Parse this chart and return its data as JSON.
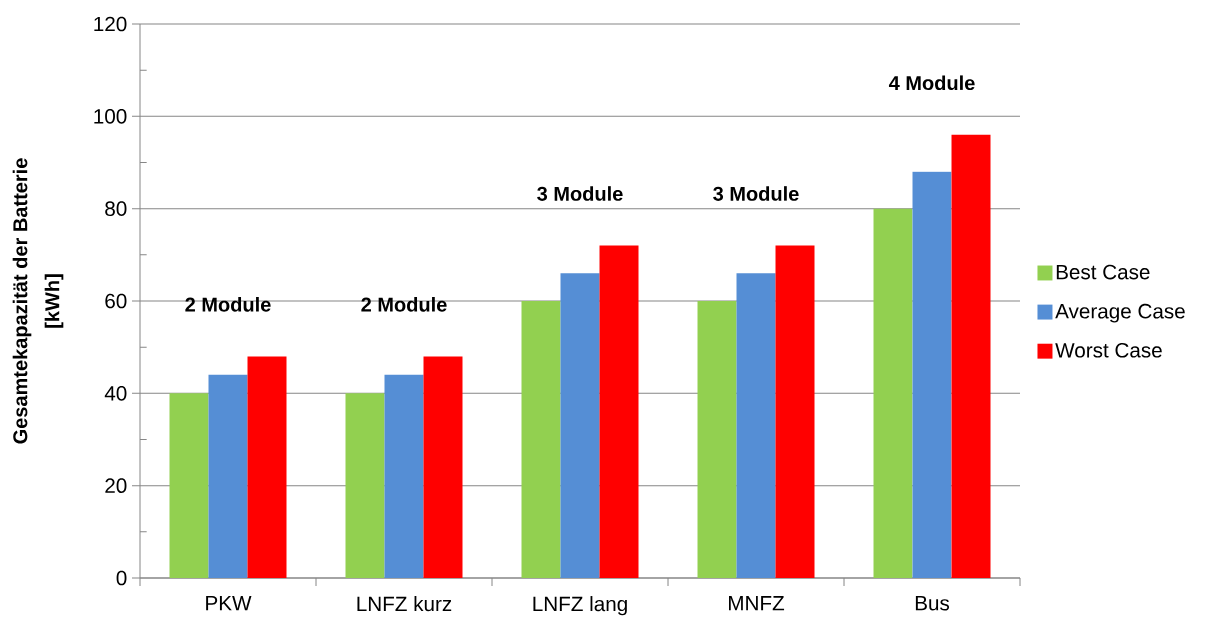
{
  "chart_data": {
    "type": "bar",
    "ylabel": "Gesamtekapazität der Batterie [kWh]",
    "categories": [
      "PKW",
      "LNFZ kurz",
      "LNFZ lang",
      "MNFZ",
      "Bus"
    ],
    "series": [
      {
        "name": "Best Case",
        "color": "#92d050",
        "values": [
          40,
          40,
          60,
          60,
          80
        ]
      },
      {
        "name": "Average Case",
        "color": "#558ed5",
        "values": [
          44,
          44,
          66,
          66,
          88
        ]
      },
      {
        "name": "Worst Case",
        "color": "#ff0000",
        "values": [
          48,
          48,
          72,
          72,
          96
        ]
      }
    ],
    "ylim": [
      0,
      120
    ],
    "yticks": [
      0,
      {
        "value": 10,
        "label": null
      },
      20,
      {
        "value": 30,
        "label": null
      },
      40,
      {
        "value": 50,
        "label": null
      },
      60,
      {
        "value": 70,
        "label": null
      },
      80,
      {
        "value": 90,
        "label": null
      },
      100,
      {
        "value": 110,
        "label": null
      },
      120
    ],
    "grid": "y",
    "legend": "right",
    "annotations": [
      "2 Module",
      "2 Module",
      "3 Module",
      "3 Module",
      "4 Module"
    ]
  }
}
